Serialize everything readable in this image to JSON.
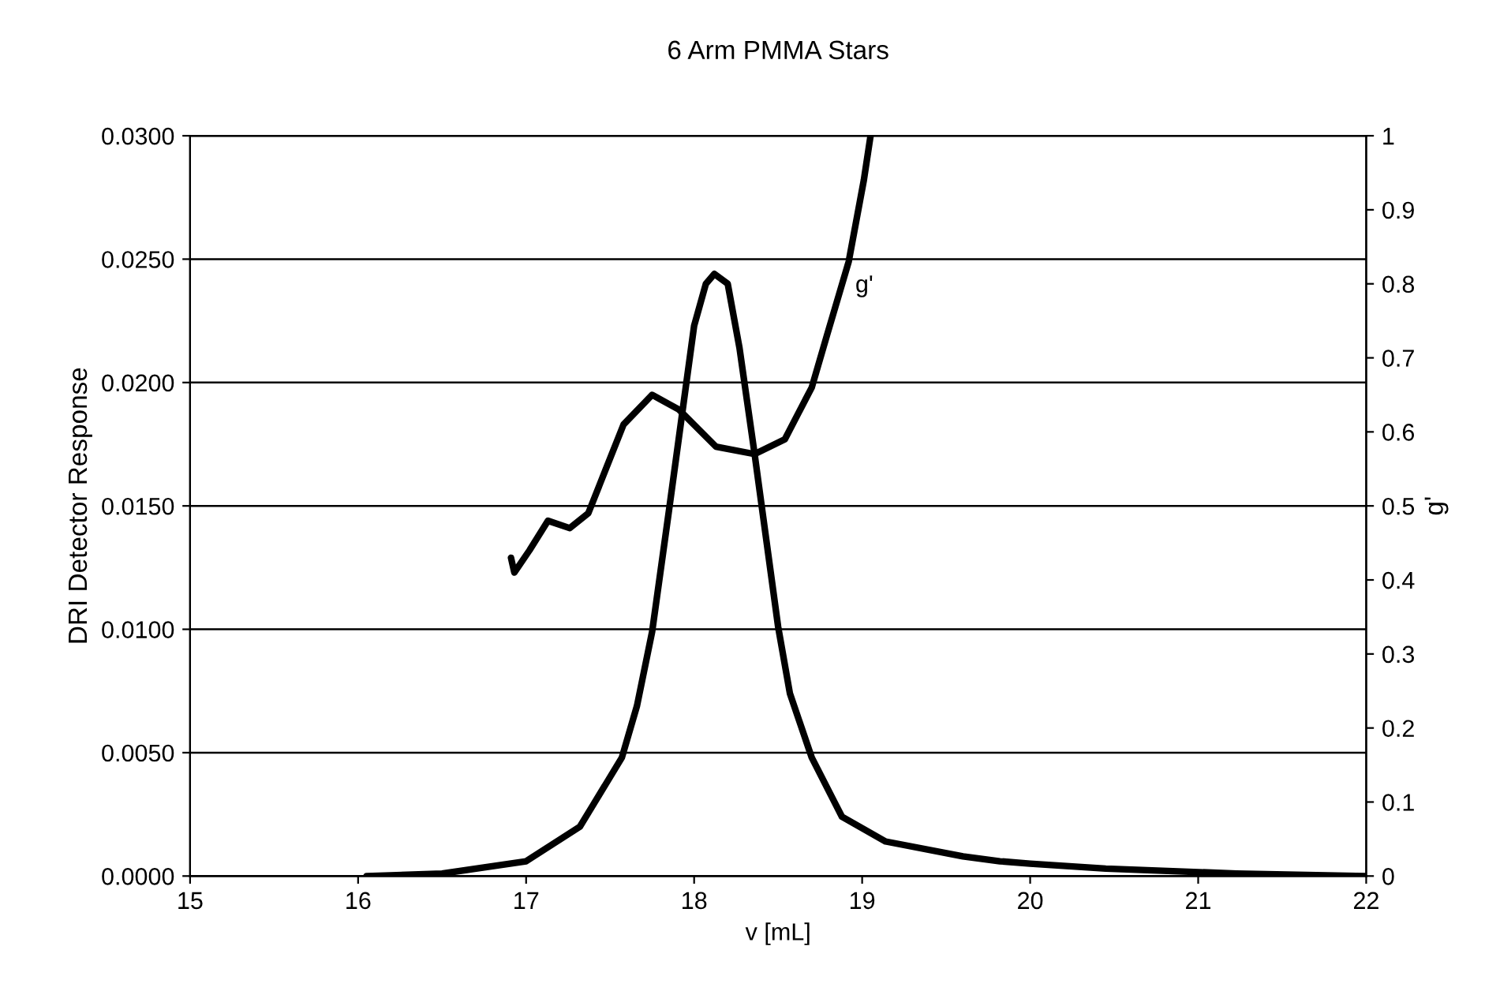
{
  "chart_data": {
    "type": "line",
    "title": "6 Arm PMMA Stars",
    "xlabel": "v [mL]",
    "ylabel": "DRI Detector Response",
    "y2label": "g'",
    "xlim": [
      15,
      22
    ],
    "xticks": [
      15,
      16,
      17,
      18,
      19,
      20,
      21,
      22
    ],
    "ylim": [
      0,
      0.03
    ],
    "yticks": [
      {
        "value": 0,
        "label": "0.0000"
      },
      {
        "value": 0.005,
        "label": "0.0050"
      },
      {
        "value": 0.01,
        "label": "0.0100"
      },
      {
        "value": 0.015,
        "label": "0.0150"
      },
      {
        "value": 0.02,
        "label": "0.0200"
      },
      {
        "value": 0.025,
        "label": "0.0250"
      },
      {
        "value": 0.03,
        "label": "0.0300"
      }
    ],
    "y2lim": [
      0,
      1
    ],
    "y2ticks": [
      0,
      0.1,
      0.2,
      0.3,
      0.4,
      0.5,
      0.6,
      0.7,
      0.8,
      0.9,
      1
    ],
    "grid": "y",
    "legend": false,
    "series": [
      {
        "color": "#000000",
        "x": [
          16.05,
          16.5,
          17.0,
          17.32,
          17.57,
          17.66,
          17.75,
          17.85,
          17.93,
          18.0,
          18.07,
          18.12,
          18.2,
          18.27,
          18.36,
          18.41,
          18.5,
          18.57,
          18.7,
          18.88,
          19.14,
          19.6,
          19.82,
          20.0,
          20.45,
          21.23,
          22.0
        ],
        "values": [
          0.0,
          0.0001,
          0.0006,
          0.002,
          0.0048,
          0.0069,
          0.0099,
          0.0148,
          0.0188,
          0.0223,
          0.024,
          0.0244,
          0.024,
          0.0214,
          0.0171,
          0.0146,
          0.0101,
          0.0074,
          0.0048,
          0.0024,
          0.0014,
          0.0008,
          0.0006,
          0.0005,
          0.0003,
          0.0001,
          0.0
        ]
      },
      {
        "name": "g'",
        "axis": "y2",
        "color": "#000000",
        "x": [
          16.91,
          16.93,
          17.02,
          17.13,
          17.26,
          17.37,
          17.44,
          17.58,
          17.75,
          17.91,
          18.13,
          18.36,
          18.54,
          18.7,
          18.79,
          18.92,
          19.01,
          19.05
        ],
        "values": [
          0.43,
          0.41,
          0.44,
          0.48,
          0.47,
          0.49,
          0.53,
          0.61,
          0.65,
          0.63,
          0.58,
          0.57,
          0.59,
          0.66,
          0.73,
          0.83,
          0.94,
          1.0
        ]
      }
    ]
  }
}
